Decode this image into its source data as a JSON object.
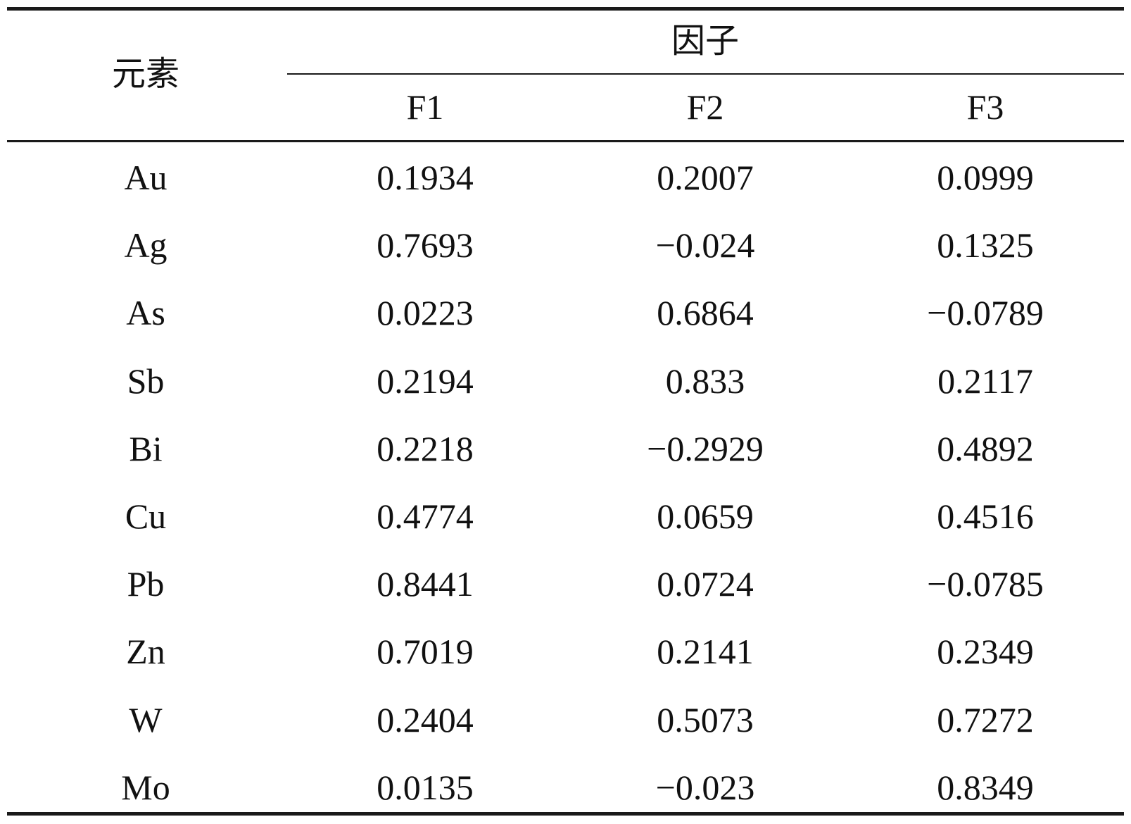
{
  "table": {
    "row_header_label": "元素",
    "group_header_label": "因子",
    "columns": [
      "F1",
      "F2",
      "F3"
    ],
    "rows": [
      {
        "element": "Au",
        "values": [
          "0.1934",
          "0.2007",
          "0.0999"
        ]
      },
      {
        "element": "Ag",
        "values": [
          "0.7693",
          "−0.024",
          "0.1325"
        ]
      },
      {
        "element": "As",
        "values": [
          "0.0223",
          "0.6864",
          "−0.0789"
        ]
      },
      {
        "element": "Sb",
        "values": [
          "0.2194",
          "0.833",
          "0.2117"
        ]
      },
      {
        "element": "Bi",
        "values": [
          "0.2218",
          "−0.2929",
          "0.4892"
        ]
      },
      {
        "element": "Cu",
        "values": [
          "0.4774",
          "0.0659",
          "0.4516"
        ]
      },
      {
        "element": "Pb",
        "values": [
          "0.8441",
          "0.0724",
          "−0.0785"
        ]
      },
      {
        "element": "Zn",
        "values": [
          "0.7019",
          "0.2141",
          "0.2349"
        ]
      },
      {
        "element": "W",
        "values": [
          "0.2404",
          "0.5073",
          "0.7272"
        ]
      },
      {
        "element": "Mo",
        "values": [
          "0.0135",
          "−0.023",
          "0.8349"
        ]
      }
    ]
  }
}
